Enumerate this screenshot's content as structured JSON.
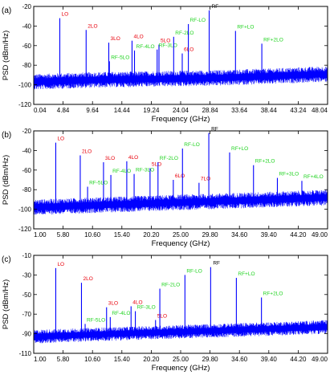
{
  "colors": {
    "trace": "#0000ff",
    "lo_label": "#e8000b",
    "rf_lo_label": "#1fd31f",
    "rf_label": "#000000"
  },
  "chart_data": [
    {
      "panel": "(a)",
      "type": "line",
      "xlabel": "Frequency (GHz)",
      "ylabel": "PSD (dBm/Hz)",
      "xlim": [
        0.04,
        48.04
      ],
      "ylim": [
        -120,
        -20
      ],
      "xticks": [
        "0.04",
        "4.84",
        "9.64",
        "14.44",
        "19.24",
        "24.04",
        "28.84",
        "33.64",
        "38.44",
        "43.24",
        "48.04"
      ],
      "yticks": [
        "-20",
        "-40",
        "-60",
        "-80",
        "-100",
        "-120"
      ],
      "noise_floor": {
        "x": [
          0.04,
          10,
          20,
          30,
          40,
          48.04
        ],
        "y": [
          -97,
          -95,
          -94,
          -93,
          -91,
          -89
        ],
        "spread_db": 8
      },
      "peaks": [
        {
          "label": "LO",
          "kind": "lo",
          "x": 4.3,
          "y": -32
        },
        {
          "label": "2LO",
          "kind": "lo",
          "x": 8.6,
          "y": -44
        },
        {
          "label": "3LO",
          "kind": "lo",
          "x": 12.3,
          "y": -57
        },
        {
          "label": "4LO",
          "kind": "lo",
          "x": 16.1,
          "y": -55
        },
        {
          "label": "5LO",
          "kind": "lo",
          "x": 20.5,
          "y": -59
        },
        {
          "label": "6LO",
          "kind": "lo",
          "x": 24.3,
          "y": -68
        },
        {
          "label": "RF-5LO",
          "kind": "rf_lo",
          "x": 12.4,
          "y": -76
        },
        {
          "label": "RF-4LO",
          "kind": "rf_lo",
          "x": 16.5,
          "y": -65
        },
        {
          "label": "RF-3LO",
          "kind": "rf_lo",
          "x": 20.2,
          "y": -64
        },
        {
          "label": "RF-2LO",
          "kind": "rf_lo",
          "x": 22.9,
          "y": -51
        },
        {
          "label": "RF-LO",
          "kind": "rf_lo",
          "x": 25.3,
          "y": -38
        },
        {
          "label": "RF",
          "kind": "rf",
          "x": 28.7,
          "y": -24
        },
        {
          "label": "RF+LO",
          "kind": "rf_lo",
          "x": 33.0,
          "y": -45
        },
        {
          "label": "RF+2LO",
          "kind": "rf_lo",
          "x": 37.3,
          "y": -58
        }
      ]
    },
    {
      "panel": "(b)",
      "type": "line",
      "xlabel": "Frequency (GHz)",
      "ylabel": "PSD (dBm/Hz)",
      "xlim": [
        1.0,
        49.0
      ],
      "ylim": [
        -120,
        -20
      ],
      "xticks": [
        "1.00",
        "5.80",
        "10.60",
        "15.40",
        "20.20",
        "25.00",
        "29.80",
        "34.60",
        "39.40",
        "44.20",
        "49.00"
      ],
      "yticks": [
        "-20",
        "-40",
        "-60",
        "-80",
        "-100",
        "-120"
      ],
      "noise_floor": {
        "x": [
          1.0,
          10,
          20,
          30,
          40,
          49.0
        ],
        "y": [
          -98,
          -96,
          -94,
          -92,
          -90,
          -88
        ],
        "spread_db": 8
      },
      "peaks": [
        {
          "label": "LO",
          "kind": "lo",
          "x": 4.6,
          "y": -32
        },
        {
          "label": "2LO",
          "kind": "lo",
          "x": 8.6,
          "y": -45
        },
        {
          "label": "3LO",
          "kind": "lo",
          "x": 12.4,
          "y": -52
        },
        {
          "label": "4LO",
          "kind": "lo",
          "x": 16.2,
          "y": -51
        },
        {
          "label": "5LO",
          "kind": "lo",
          "x": 20.0,
          "y": -58
        },
        {
          "label": "6LO",
          "kind": "lo",
          "x": 23.8,
          "y": -70
        },
        {
          "label": "7LO",
          "kind": "lo",
          "x": 28.0,
          "y": -73
        },
        {
          "label": "RF-5LO",
          "kind": "rf_lo",
          "x": 9.8,
          "y": -77
        },
        {
          "label": "RF-4LO",
          "kind": "rf_lo",
          "x": 13.6,
          "y": -65
        },
        {
          "label": "RF-3LO",
          "kind": "rf_lo",
          "x": 17.4,
          "y": -64
        },
        {
          "label": "RF-2LO",
          "kind": "rf_lo",
          "x": 21.3,
          "y": -52
        },
        {
          "label": "RF-LO",
          "kind": "rf_lo",
          "x": 25.3,
          "y": -38
        },
        {
          "label": "RF",
          "kind": "rf",
          "x": 29.6,
          "y": -22
        },
        {
          "label": "RF+LO",
          "kind": "rf_lo",
          "x": 33.0,
          "y": -42
        },
        {
          "label": "RF+2LO",
          "kind": "rf_lo",
          "x": 36.9,
          "y": -55
        },
        {
          "label": "RF+3LO",
          "kind": "rf_lo",
          "x": 40.8,
          "y": -68
        },
        {
          "label": "RF+4LO",
          "kind": "rf_lo",
          "x": 44.8,
          "y": -71
        }
      ]
    },
    {
      "panel": "(c)",
      "type": "line",
      "xlabel": "Frequency (GHz)",
      "ylabel": "PSD (dBm/Hz)",
      "xlim": [
        1.0,
        49.0
      ],
      "ylim": [
        -110,
        -10
      ],
      "xticks": [
        "1.00",
        "5.80",
        "10.60",
        "15.40",
        "20.20",
        "25.00",
        "29.80",
        "34.60",
        "39.40",
        "44.20",
        "49.00"
      ],
      "yticks": [
        "-10",
        "-30",
        "-50",
        "-70",
        "-90",
        "-110"
      ],
      "noise_floor": {
        "x": [
          1.0,
          10,
          20,
          30,
          40,
          49.0
        ],
        "y": [
          -93,
          -91,
          -89,
          -87,
          -85,
          -83
        ],
        "spread_db": 7
      },
      "peaks": [
        {
          "label": "LO",
          "kind": "lo",
          "x": 4.6,
          "y": -23
        },
        {
          "label": "2LO",
          "kind": "lo",
          "x": 8.8,
          "y": -38
        },
        {
          "label": "3LO",
          "kind": "lo",
          "x": 12.9,
          "y": -63
        },
        {
          "label": "4LO",
          "kind": "lo",
          "x": 16.9,
          "y": -62
        },
        {
          "label": "5LO",
          "kind": "lo",
          "x": 20.9,
          "y": -76
        },
        {
          "label": "RF-5LO",
          "kind": "rf_lo",
          "x": 9.4,
          "y": -80
        },
        {
          "label": "RF-4LO",
          "kind": "rf_lo",
          "x": 13.5,
          "y": -73
        },
        {
          "label": "RF-3LO",
          "kind": "rf_lo",
          "x": 17.6,
          "y": -67
        },
        {
          "label": "RF-2LO",
          "kind": "rf_lo",
          "x": 21.6,
          "y": -44
        },
        {
          "label": "RF-LO",
          "kind": "rf_lo",
          "x": 25.7,
          "y": -30
        },
        {
          "label": "RF",
          "kind": "rf",
          "x": 29.9,
          "y": -22
        },
        {
          "label": "RF+LO",
          "kind": "rf_lo",
          "x": 34.1,
          "y": -33
        },
        {
          "label": "RF+2LO",
          "kind": "rf_lo",
          "x": 38.2,
          "y": -53
        }
      ]
    }
  ]
}
